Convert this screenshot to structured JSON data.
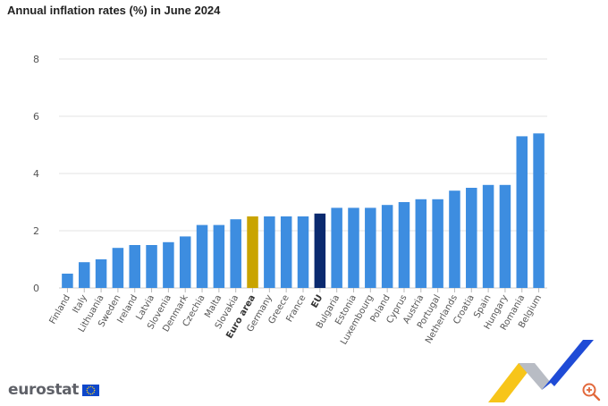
{
  "title": "Annual inflation rates (%) in June 2024",
  "logo": {
    "text": "eurostat",
    "flag_icon": "eu-flag-icon"
  },
  "zoom_icon": "zoom-in-icon",
  "colors": {
    "default_bar": "#3d8de0",
    "euro_area_bar": "#c9a400",
    "eu_bar": "#0b2a6f",
    "gridline": "#e3e3e3",
    "axis_text": "#555555"
  },
  "chart_data": {
    "type": "bar",
    "title": "Annual inflation rates (%) in June 2024",
    "xlabel": "",
    "ylabel": "",
    "ylim": [
      0,
      8
    ],
    "yticks": [
      0,
      2,
      4,
      6,
      8
    ],
    "grid": true,
    "categories": [
      "Finland",
      "Italy",
      "Lithuania",
      "Sweden",
      "Ireland",
      "Latvia",
      "Slovenia",
      "Denmark",
      "Czechia",
      "Malta",
      "Slovakia",
      "Euro area",
      "Germany",
      "Greece",
      "France",
      "EU",
      "Bulgaria",
      "Estonia",
      "Luxembourg",
      "Poland",
      "Cyprus",
      "Austria",
      "Portugal",
      "Netherlands",
      "Croatia",
      "Spain",
      "Hungary",
      "Romania",
      "Belgium"
    ],
    "values": [
      0.5,
      0.9,
      1.0,
      1.4,
      1.5,
      1.5,
      1.6,
      1.8,
      2.2,
      2.2,
      2.4,
      2.5,
      2.5,
      2.5,
      2.5,
      2.6,
      2.8,
      2.8,
      2.8,
      2.9,
      3.0,
      3.1,
      3.1,
      3.4,
      3.5,
      3.6,
      3.6,
      5.3,
      5.4
    ],
    "highlight": {
      "Euro area": "euro_area_bar",
      "EU": "eu_bar"
    },
    "bold_labels": [
      "Euro area",
      "EU"
    ]
  }
}
